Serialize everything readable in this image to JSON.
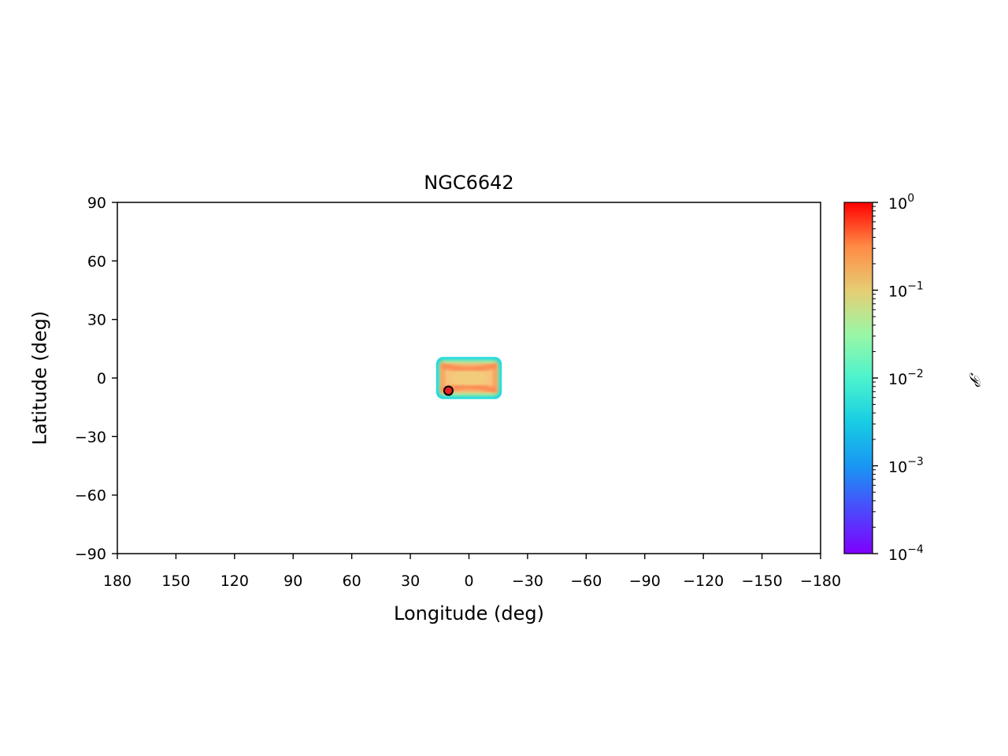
{
  "chart_data": {
    "type": "heatmap",
    "title": "NGC6642",
    "xlabel": "Longitude (deg)",
    "ylabel": "Latitude (deg)",
    "xlim": [
      180,
      -180
    ],
    "ylim": [
      -90,
      90
    ],
    "x_ticks": [
      180,
      150,
      120,
      90,
      60,
      30,
      0,
      -30,
      -60,
      -90,
      -120,
      -150,
      -180
    ],
    "x_tick_labels": [
      "180",
      "150",
      "120",
      "90",
      "60",
      "30",
      "0",
      "−30",
      "−60",
      "−90",
      "−120",
      "−150",
      "−180"
    ],
    "y_ticks": [
      90,
      60,
      30,
      0,
      -30,
      -60,
      -90
    ],
    "y_tick_labels": [
      "90",
      "60",
      "30",
      "0",
      "−30",
      "−60",
      "−90"
    ],
    "grid": false,
    "colormap": "rainbow",
    "colorbar": {
      "label": "𝒫",
      "scale": "log",
      "range": [
        0.0001,
        1
      ],
      "ticks": [
        1,
        0.1,
        0.01,
        0.001,
        0.0001
      ],
      "tick_base": [
        "10",
        "10",
        "10",
        "10",
        "10"
      ],
      "tick_exponents": [
        "0",
        "−1",
        "−2",
        "−3",
        "−4"
      ]
    },
    "density_region": {
      "lon_range": [
        16,
        -16
      ],
      "lat_range": [
        -10,
        10
      ],
      "typical_value": 0.1,
      "peak_value": 0.3,
      "edge_value": 0.002
    },
    "marker": {
      "lon": 10.5,
      "lat": -6.5,
      "color": "#e8201c",
      "edge_color": "#000000"
    }
  }
}
